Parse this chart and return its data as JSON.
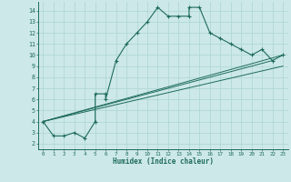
{
  "xlabel": "Humidex (Indice chaleur)",
  "bg_color": "#cde8e8",
  "line_color": "#1e6b5e",
  "grid_color": "#b0d8d8",
  "xlim": [
    -0.5,
    23.5
  ],
  "ylim": [
    1.5,
    14.8
  ],
  "xticks": [
    0,
    1,
    2,
    3,
    4,
    5,
    6,
    7,
    8,
    9,
    10,
    11,
    12,
    13,
    14,
    15,
    16,
    17,
    18,
    19,
    20,
    21,
    22,
    23
  ],
  "yticks": [
    2,
    3,
    4,
    5,
    6,
    7,
    8,
    9,
    10,
    11,
    12,
    13,
    14
  ],
  "main_x": [
    0,
    1,
    2,
    3,
    4,
    5,
    5,
    6,
    6,
    7,
    8,
    9,
    10,
    11,
    12,
    13,
    14,
    14,
    15,
    16,
    17,
    18,
    19,
    20,
    21,
    22,
    23
  ],
  "main_y": [
    4.0,
    2.7,
    2.7,
    3.0,
    2.5,
    4.0,
    6.5,
    6.5,
    6.0,
    9.5,
    11.0,
    12.0,
    13.0,
    14.3,
    13.5,
    13.5,
    13.5,
    14.3,
    14.3,
    12.0,
    11.5,
    11.0,
    10.5,
    10.0,
    10.5,
    9.5,
    10.0
  ],
  "line1_x": [
    0,
    23
  ],
  "line1_y": [
    4.0,
    10.0
  ],
  "line2_x": [
    0,
    22
  ],
  "line2_y": [
    4.0,
    9.5
  ],
  "line3_x": [
    0,
    23
  ],
  "line3_y": [
    4.0,
    9.0
  ]
}
